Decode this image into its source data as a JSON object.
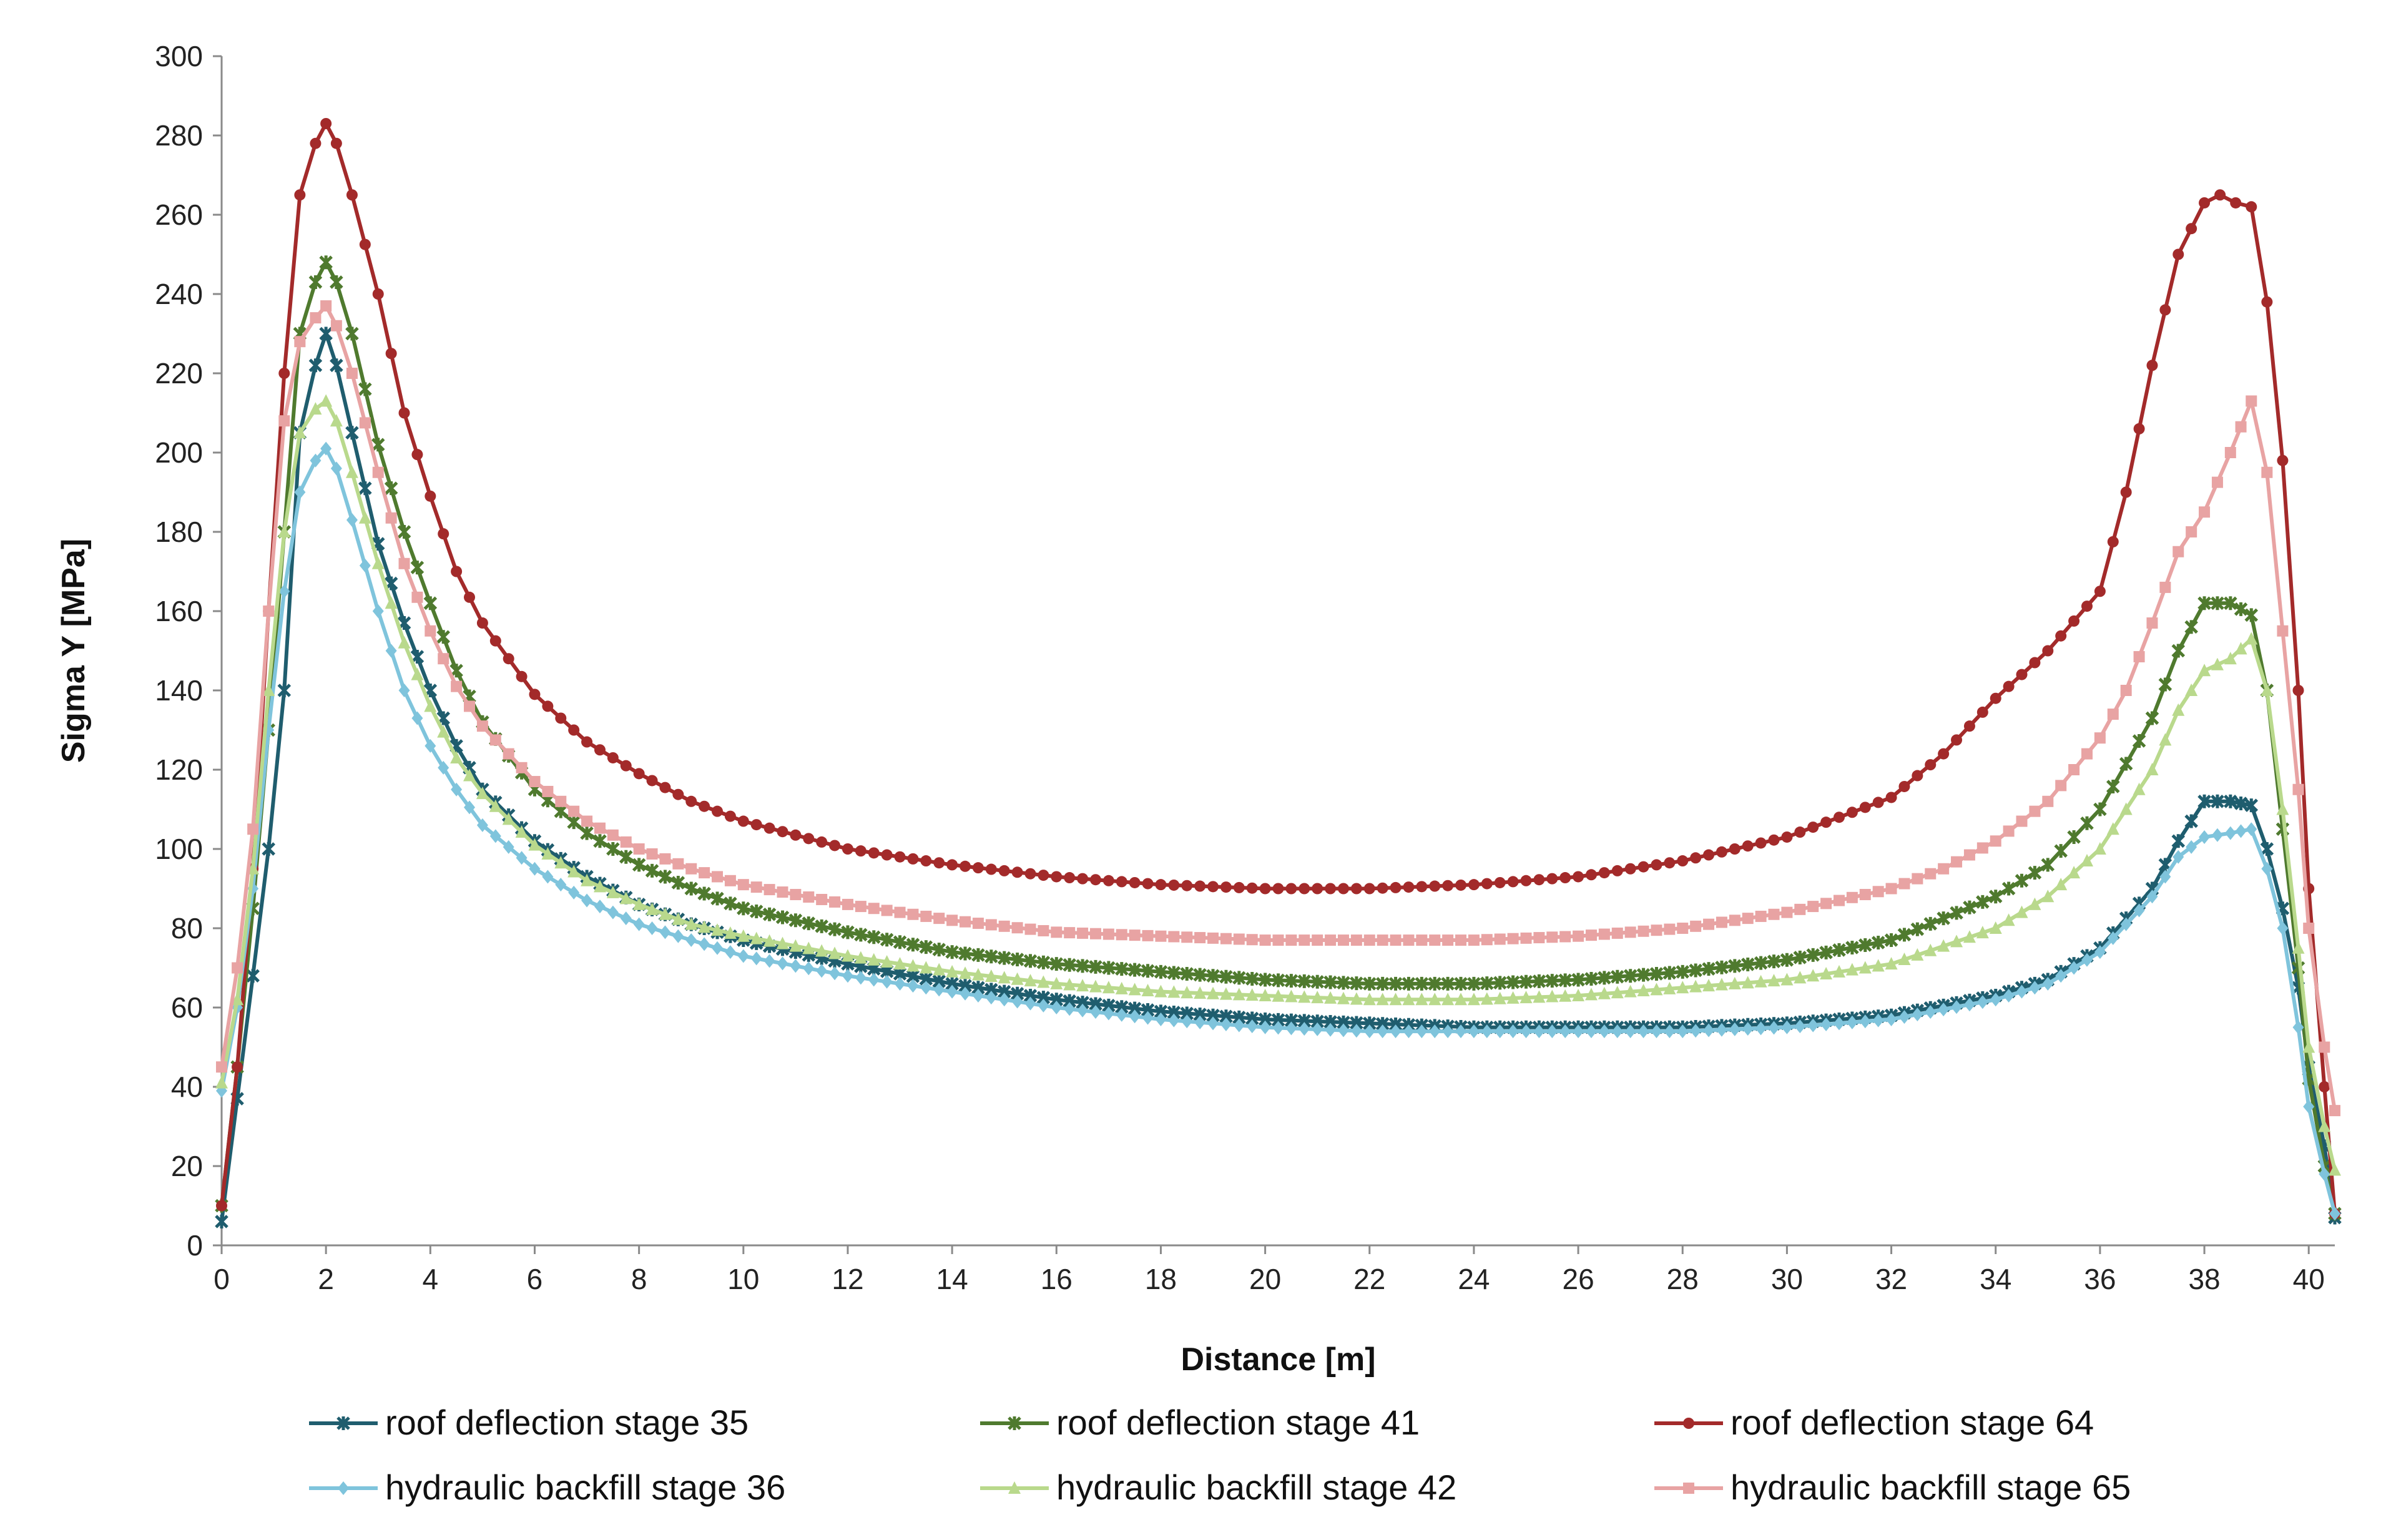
{
  "chart_data": {
    "type": "line",
    "xlabel": "Distance [m]",
    "ylabel": "Sigma Y   [MPa]",
    "xlim": [
      0,
      40.5
    ],
    "ylim": [
      0,
      300
    ],
    "xticks": [
      0,
      2,
      4,
      6,
      8,
      10,
      12,
      14,
      16,
      18,
      20,
      22,
      24,
      26,
      28,
      30,
      32,
      34,
      36,
      38,
      40
    ],
    "yticks": [
      0,
      20,
      40,
      60,
      80,
      100,
      120,
      140,
      160,
      180,
      200,
      220,
      240,
      260,
      280,
      300
    ],
    "grid": false,
    "legend_position": "bottom",
    "series": [
      {
        "name": "roof deflection stage 35",
        "color": "#1f5d6e",
        "marker": "star",
        "points": [
          [
            0,
            6
          ],
          [
            0.3,
            37
          ],
          [
            0.6,
            68
          ],
          [
            0.9,
            100
          ],
          [
            1.2,
            140
          ],
          [
            1.5,
            205
          ],
          [
            1.8,
            222
          ],
          [
            2.0,
            230
          ],
          [
            2.2,
            222
          ],
          [
            2.5,
            205
          ],
          [
            3,
            177
          ],
          [
            3.5,
            157
          ],
          [
            4,
            140
          ],
          [
            4.5,
            126
          ],
          [
            5,
            115
          ],
          [
            6,
            102
          ],
          [
            7,
            93
          ],
          [
            8,
            86
          ],
          [
            9,
            81
          ],
          [
            10,
            77
          ],
          [
            12,
            71
          ],
          [
            14,
            66
          ],
          [
            16,
            62
          ],
          [
            18,
            59
          ],
          [
            20,
            57
          ],
          [
            22,
            56
          ],
          [
            24,
            55
          ],
          [
            26,
            55
          ],
          [
            28,
            55
          ],
          [
            30,
            56
          ],
          [
            32,
            58
          ],
          [
            34,
            63
          ],
          [
            35,
            67
          ],
          [
            36,
            75
          ],
          [
            37,
            90
          ],
          [
            37.5,
            102
          ],
          [
            38,
            112
          ],
          [
            38.5,
            112
          ],
          [
            38.9,
            111
          ],
          [
            39.2,
            100
          ],
          [
            39.5,
            85
          ],
          [
            39.8,
            65
          ],
          [
            40,
            45
          ],
          [
            40.3,
            25
          ],
          [
            40.5,
            7
          ]
        ]
      },
      {
        "name": "roof deflection stage 41",
        "color": "#4f7a2e",
        "marker": "star",
        "points": [
          [
            0,
            10
          ],
          [
            0.3,
            45
          ],
          [
            0.6,
            85
          ],
          [
            0.9,
            130
          ],
          [
            1.2,
            180
          ],
          [
            1.5,
            230
          ],
          [
            1.8,
            243
          ],
          [
            2.0,
            248
          ],
          [
            2.2,
            243
          ],
          [
            2.5,
            230
          ],
          [
            3,
            202
          ],
          [
            3.5,
            180
          ],
          [
            4,
            162
          ],
          [
            4.5,
            145
          ],
          [
            5,
            132
          ],
          [
            6,
            115
          ],
          [
            7,
            104
          ],
          [
            8,
            96
          ],
          [
            9,
            90
          ],
          [
            10,
            85
          ],
          [
            12,
            79
          ],
          [
            14,
            74
          ],
          [
            16,
            71
          ],
          [
            18,
            69
          ],
          [
            20,
            67
          ],
          [
            22,
            66
          ],
          [
            24,
            66
          ],
          [
            26,
            67
          ],
          [
            28,
            69
          ],
          [
            30,
            72
          ],
          [
            32,
            77
          ],
          [
            34,
            88
          ],
          [
            35,
            96
          ],
          [
            36,
            110
          ],
          [
            37,
            133
          ],
          [
            37.5,
            150
          ],
          [
            38,
            162
          ],
          [
            38.5,
            162
          ],
          [
            38.9,
            159
          ],
          [
            39.2,
            140
          ],
          [
            39.5,
            105
          ],
          [
            39.8,
            70
          ],
          [
            40,
            42
          ],
          [
            40.3,
            20
          ],
          [
            40.5,
            8
          ]
        ]
      },
      {
        "name": "roof deflection stage 64",
        "color": "#a32a2a",
        "marker": "dot",
        "points": [
          [
            0,
            10
          ],
          [
            0.3,
            45
          ],
          [
            0.6,
            95
          ],
          [
            0.9,
            160
          ],
          [
            1.2,
            220
          ],
          [
            1.5,
            265
          ],
          [
            1.8,
            278
          ],
          [
            2.0,
            283
          ],
          [
            2.2,
            278
          ],
          [
            2.5,
            265
          ],
          [
            3,
            240
          ],
          [
            3.5,
            210
          ],
          [
            4,
            189
          ],
          [
            4.5,
            170
          ],
          [
            5,
            157
          ],
          [
            6,
            139
          ],
          [
            7,
            127
          ],
          [
            8,
            119
          ],
          [
            9,
            112
          ],
          [
            10,
            107
          ],
          [
            12,
            100
          ],
          [
            14,
            96
          ],
          [
            16,
            93
          ],
          [
            18,
            91
          ],
          [
            20,
            90
          ],
          [
            22,
            90
          ],
          [
            24,
            91
          ],
          [
            26,
            93
          ],
          [
            28,
            97
          ],
          [
            30,
            103
          ],
          [
            32,
            113
          ],
          [
            33,
            124
          ],
          [
            34,
            138
          ],
          [
            35,
            150
          ],
          [
            36,
            165
          ],
          [
            36.5,
            190
          ],
          [
            37,
            222
          ],
          [
            37.5,
            250
          ],
          [
            38,
            263
          ],
          [
            38.3,
            265
          ],
          [
            38.6,
            263
          ],
          [
            38.9,
            262
          ],
          [
            39.2,
            238
          ],
          [
            39.5,
            198
          ],
          [
            39.8,
            140
          ],
          [
            40,
            90
          ],
          [
            40.3,
            40
          ],
          [
            40.5,
            8
          ]
        ]
      },
      {
        "name": "hydraulic backfill stage 36",
        "color": "#7fc4dc",
        "marker": "diamond",
        "points": [
          [
            0,
            39
          ],
          [
            0.3,
            60
          ],
          [
            0.6,
            90
          ],
          [
            0.9,
            130
          ],
          [
            1.2,
            165
          ],
          [
            1.5,
            190
          ],
          [
            1.8,
            198
          ],
          [
            2.0,
            201
          ],
          [
            2.2,
            196
          ],
          [
            2.5,
            183
          ],
          [
            3,
            160
          ],
          [
            3.5,
            140
          ],
          [
            4,
            126
          ],
          [
            4.5,
            115
          ],
          [
            5,
            106
          ],
          [
            6,
            95
          ],
          [
            7,
            87
          ],
          [
            8,
            81
          ],
          [
            9,
            77
          ],
          [
            10,
            73
          ],
          [
            12,
            68
          ],
          [
            14,
            64
          ],
          [
            16,
            60
          ],
          [
            18,
            57
          ],
          [
            20,
            55
          ],
          [
            22,
            54
          ],
          [
            24,
            54
          ],
          [
            26,
            54
          ],
          [
            28,
            54
          ],
          [
            30,
            55
          ],
          [
            32,
            57
          ],
          [
            34,
            62
          ],
          [
            35,
            66
          ],
          [
            36,
            74
          ],
          [
            37,
            88
          ],
          [
            37.5,
            98
          ],
          [
            38,
            103
          ],
          [
            38.5,
            104
          ],
          [
            38.9,
            105
          ],
          [
            39.2,
            95
          ],
          [
            39.5,
            80
          ],
          [
            39.8,
            55
          ],
          [
            40,
            35
          ],
          [
            40.3,
            18
          ],
          [
            40.5,
            8
          ]
        ]
      },
      {
        "name": "hydraulic backfill stage 42",
        "color": "#b9d98c",
        "marker": "triangle",
        "points": [
          [
            0,
            41
          ],
          [
            0.3,
            62
          ],
          [
            0.6,
            95
          ],
          [
            0.9,
            140
          ],
          [
            1.2,
            180
          ],
          [
            1.5,
            205
          ],
          [
            1.8,
            211
          ],
          [
            2.0,
            213
          ],
          [
            2.2,
            208
          ],
          [
            2.5,
            195
          ],
          [
            3,
            172
          ],
          [
            3.5,
            152
          ],
          [
            4,
            136
          ],
          [
            4.5,
            123
          ],
          [
            5,
            114
          ],
          [
            6,
            101
          ],
          [
            7,
            92
          ],
          [
            8,
            86
          ],
          [
            9,
            81
          ],
          [
            10,
            78
          ],
          [
            12,
            73
          ],
          [
            14,
            69
          ],
          [
            16,
            66
          ],
          [
            18,
            64
          ],
          [
            20,
            63
          ],
          [
            22,
            62
          ],
          [
            24,
            62
          ],
          [
            26,
            63
          ],
          [
            28,
            65
          ],
          [
            30,
            67
          ],
          [
            32,
            71
          ],
          [
            34,
            80
          ],
          [
            35,
            88
          ],
          [
            36,
            100
          ],
          [
            37,
            120
          ],
          [
            37.5,
            135
          ],
          [
            38,
            145
          ],
          [
            38.5,
            148
          ],
          [
            38.9,
            153
          ],
          [
            39.2,
            140
          ],
          [
            39.5,
            110
          ],
          [
            39.8,
            75
          ],
          [
            40,
            50
          ],
          [
            40.3,
            30
          ],
          [
            40.5,
            19
          ]
        ]
      },
      {
        "name": "hydraulic backfill stage 65",
        "color": "#e8a3a3",
        "marker": "square",
        "points": [
          [
            0,
            45
          ],
          [
            0.3,
            70
          ],
          [
            0.6,
            105
          ],
          [
            0.9,
            160
          ],
          [
            1.2,
            208
          ],
          [
            1.5,
            228
          ],
          [
            1.8,
            234
          ],
          [
            2.0,
            237
          ],
          [
            2.2,
            232
          ],
          [
            2.5,
            220
          ],
          [
            3,
            195
          ],
          [
            3.5,
            172
          ],
          [
            4,
            155
          ],
          [
            4.5,
            141
          ],
          [
            5,
            131
          ],
          [
            6,
            117
          ],
          [
            7,
            107
          ],
          [
            8,
            100
          ],
          [
            9,
            95
          ],
          [
            10,
            91
          ],
          [
            12,
            86
          ],
          [
            14,
            82
          ],
          [
            16,
            79
          ],
          [
            18,
            78
          ],
          [
            20,
            77
          ],
          [
            22,
            77
          ],
          [
            24,
            77
          ],
          [
            26,
            78
          ],
          [
            28,
            80
          ],
          [
            30,
            84
          ],
          [
            32,
            90
          ],
          [
            33,
            95
          ],
          [
            34,
            102
          ],
          [
            35,
            112
          ],
          [
            36,
            128
          ],
          [
            36.5,
            140
          ],
          [
            37,
            157
          ],
          [
            37.5,
            175
          ],
          [
            38,
            185
          ],
          [
            38.5,
            200
          ],
          [
            38.9,
            213
          ],
          [
            39.2,
            195
          ],
          [
            39.5,
            155
          ],
          [
            39.8,
            115
          ],
          [
            40,
            80
          ],
          [
            40.3,
            50
          ],
          [
            40.5,
            34
          ]
        ]
      }
    ]
  }
}
